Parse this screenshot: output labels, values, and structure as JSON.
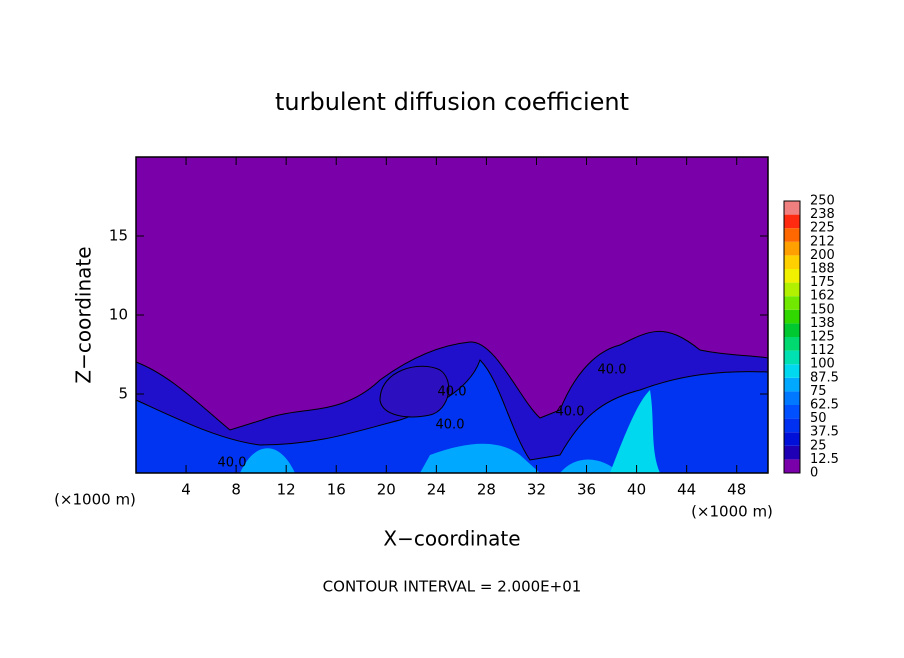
{
  "chart_data": {
    "type": "contour",
    "title": "turbulent diffusion coefficient",
    "x_label": "X−coordinate",
    "y_label": "Z−coordinate",
    "x_unit_left": "(×1000 m)",
    "x_unit_right": "(×1000 m)",
    "footer": "CONTOUR INTERVAL = 2.000E+01",
    "xlim": [
      0,
      50.5
    ],
    "ylim": [
      0,
      20
    ],
    "xticks": [
      4,
      8,
      12,
      16,
      20,
      24,
      28,
      32,
      36,
      40,
      44,
      48
    ],
    "yticks": [
      5,
      10,
      15
    ],
    "contour_labels": [
      "40.0",
      "40.0",
      "40.0",
      "40.0",
      "40.0"
    ],
    "colorbar": {
      "levels": [
        0,
        12.5,
        25,
        37.5,
        50,
        62.5,
        75,
        87.5,
        100,
        112,
        125,
        138,
        150,
        162,
        175,
        188,
        200,
        212,
        225,
        238,
        250
      ],
      "colors": [
        "#7a00aa",
        "#2000b4",
        "#0010d8",
        "#0030f0",
        "#0050ff",
        "#0078ff",
        "#00a8ff",
        "#00d8f0",
        "#00e0b0",
        "#00d870",
        "#00c830",
        "#30d800",
        "#70e800",
        "#b0f000",
        "#f0f000",
        "#ffd000",
        "#ffa000",
        "#ff6800",
        "#ff2a10",
        "#f08080"
      ]
    }
  }
}
